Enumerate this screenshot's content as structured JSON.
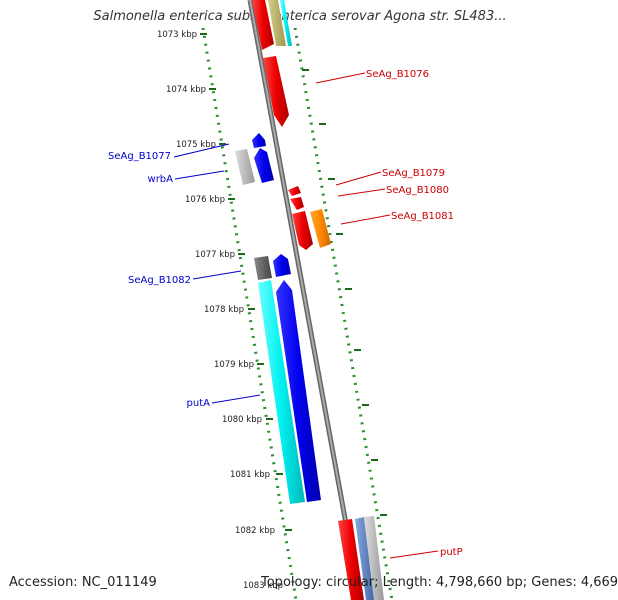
{
  "title": "Salmonella enterica subsp. enterica serovar Agona str. SL483...",
  "footer": {
    "accession": "Accession: NC_011149",
    "topology": "Topology: circular; Length: 4,798,660 bp; Genes: 4,669"
  },
  "ruler": {
    "unit": "kbp",
    "ticks": [
      {
        "kbp": 1073,
        "label": "1073 kbp"
      },
      {
        "kbp": 1074,
        "label": "1074 kbp"
      },
      {
        "kbp": 1075,
        "label": "1075 kbp"
      },
      {
        "kbp": 1076,
        "label": "1076 kbp"
      },
      {
        "kbp": 1077,
        "label": "1077 kbp"
      },
      {
        "kbp": 1078,
        "label": "1078 kbp"
      },
      {
        "kbp": 1079,
        "label": "1079 kbp"
      },
      {
        "kbp": 1080,
        "label": "1080 kbp"
      },
      {
        "kbp": 1081,
        "label": "1081 kbp"
      },
      {
        "kbp": 1082,
        "label": "1082 kbp"
      },
      {
        "kbp": 1083,
        "label": "1083 kbp"
      }
    ]
  },
  "colors": {
    "backbone": "#888888",
    "ruler_dots": "#2e8b2e",
    "label_red": "#cc0000",
    "label_blue": "#0000cc"
  },
  "genes": [
    {
      "name": "SeAg_B1076",
      "color": "#ee1111"
    },
    {
      "name": "SeAg_B1079",
      "color": "#ee1111"
    },
    {
      "name": "SeAg_B1080",
      "color": "#ee1111"
    },
    {
      "name": "SeAg_B1081",
      "color": "#ff8800"
    },
    {
      "name": "putP",
      "color": "#ee1111"
    },
    {
      "name": "SeAg_B1077",
      "color": "#0000ee"
    },
    {
      "name": "wrbA",
      "color": "#0000ee"
    },
    {
      "name": "SeAg_B1082",
      "color": "#0000ee"
    },
    {
      "name": "putA",
      "color": "#0000ee"
    }
  ]
}
